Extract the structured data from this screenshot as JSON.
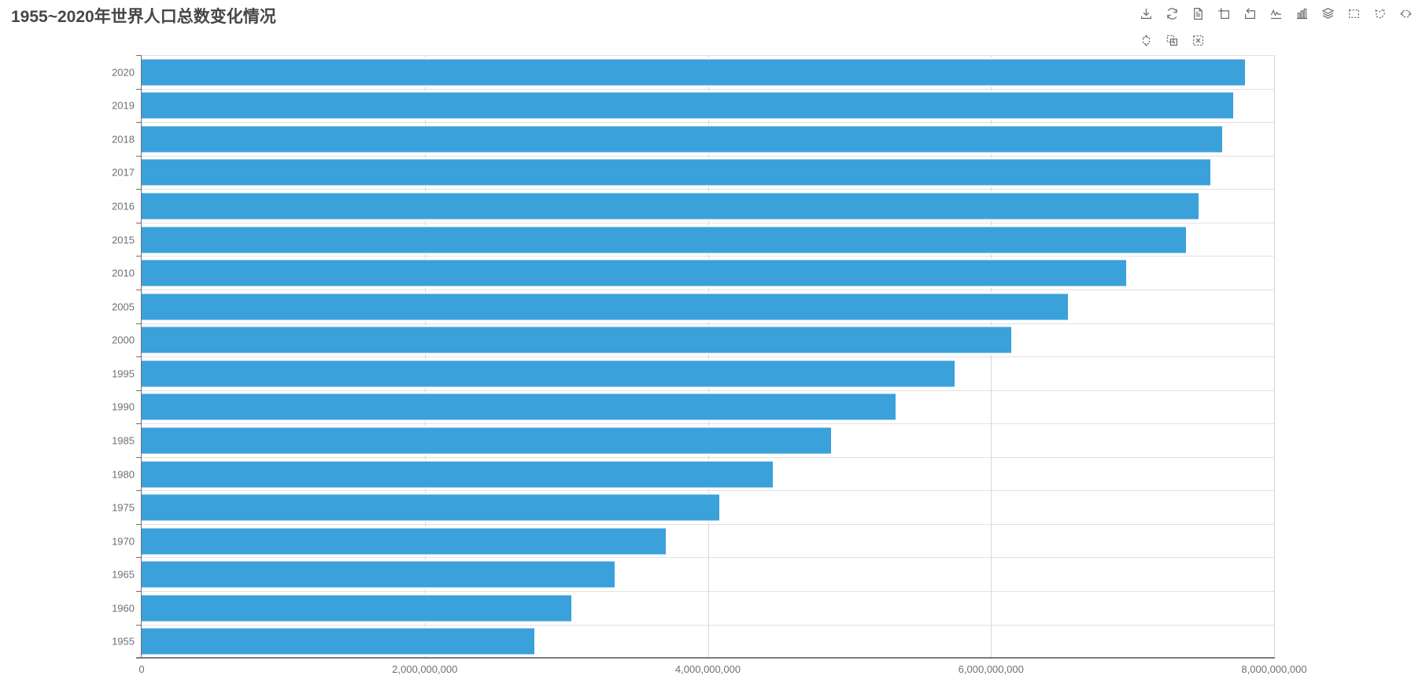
{
  "title": "1955~2020年世界人口总数变化情况",
  "toolbox": {
    "row1": [
      "save-as-image",
      "restore",
      "data-view",
      "data-zoom",
      "data-zoom-reset",
      "magic-type-line",
      "magic-type-bar",
      "magic-type-stack",
      "brush-rect",
      "brush-polygon",
      "brush-line-x"
    ],
    "row2": [
      "brush-line-y",
      "brush-keep",
      "brush-clear"
    ]
  },
  "chart_data": {
    "type": "bar",
    "orientation": "horizontal",
    "title": "1955~2020年世界人口总数变化情况",
    "categories": [
      "2020",
      "2019",
      "2018",
      "2017",
      "2016",
      "2015",
      "2010",
      "2005",
      "2000",
      "1995",
      "1990",
      "1985",
      "1980",
      "1975",
      "1970",
      "1965",
      "1960",
      "1955"
    ],
    "values": [
      7794798739,
      7713468100,
      7631091040,
      7547858925,
      7464022049,
      7379797139,
      6956823603,
      6541907027,
      6143493823,
      5744212979,
      5327231061,
      4870921740,
      4458003514,
      4079480606,
      3700437046,
      3339583597,
      3034949748,
      2773019936
    ],
    "xlabel": "",
    "ylabel": "",
    "x_axis": {
      "min": 0,
      "max": 8000000000,
      "tick_labels": [
        "0",
        "2,000,000,000",
        "4,000,000,000",
        "6,000,000,000",
        "8,000,000,000"
      ]
    },
    "grid": true,
    "legend_position": "none"
  },
  "colors": {
    "bar": "#3AA1DB",
    "title_text": "#464646",
    "axis_label": "#6E7079",
    "axis_line": "#6E7079",
    "grid_line": "#E2E2E2",
    "toolbox_icon": "#6B6B6B",
    "background": "#FFFFFF"
  }
}
